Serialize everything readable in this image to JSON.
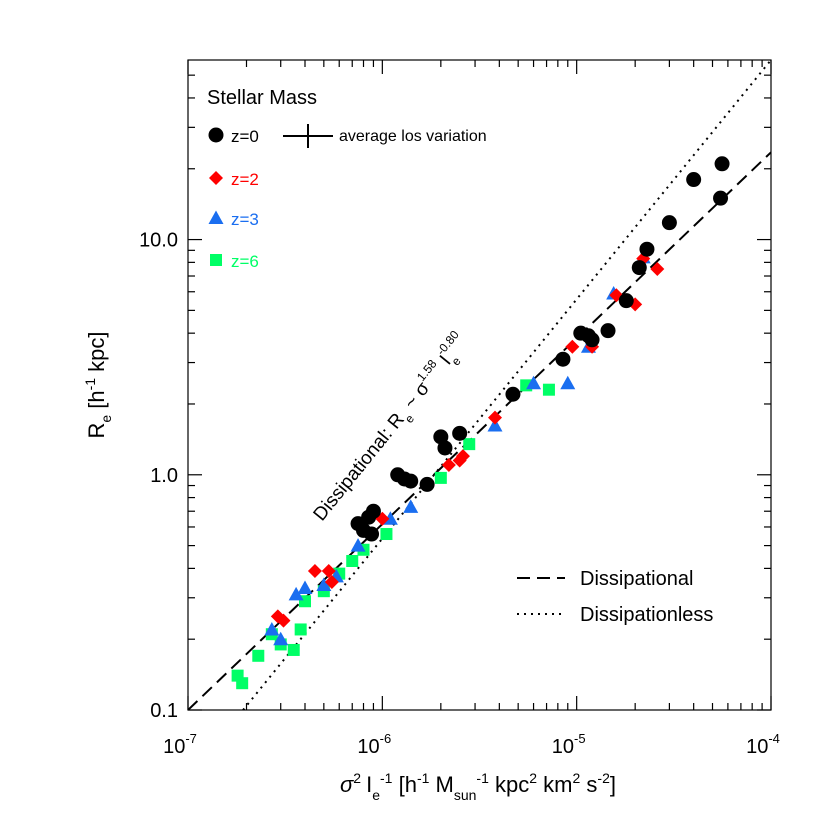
{
  "chart_data": {
    "type": "scatter",
    "xscale": "log",
    "yscale": "log",
    "xlim": [
      1e-07,
      0.0001
    ],
    "ylim": [
      0.1,
      58
    ],
    "xticks": [
      {
        "value": 1e-07,
        "base": "10",
        "exp": "-7"
      },
      {
        "value": 1e-06,
        "base": "10",
        "exp": "-6"
      },
      {
        "value": 1e-05,
        "base": "10",
        "exp": "-5"
      },
      {
        "value": 0.0001,
        "base": "10",
        "exp": "-4"
      }
    ],
    "yticks": [
      {
        "value": 0.1,
        "label": "0.1"
      },
      {
        "value": 1,
        "label": "1.0"
      },
      {
        "value": 10,
        "label": "10.0"
      }
    ],
    "xlabel": {
      "sigma": "σ",
      "sup2": "2",
      "I": "I",
      "sub_e": "e",
      "supm1": "-1",
      "rest1": " [h",
      "supm1b": "-1",
      "M": " M",
      "sub_sun": "sun",
      "supm1c": "-1",
      "kpc": " kpc",
      "sup2b": "2",
      "km": " km",
      "sup2c": "2",
      "s": " s",
      "supm2": "-2",
      "close": "]"
    },
    "ylabel": {
      "R": "R",
      "sub_e": "e",
      "rest": " [h",
      "supm1": "-1",
      "close": " kpc]"
    },
    "legend_title": "Stellar Mass",
    "legend_note": "average los variation",
    "series": [
      {
        "name": "z=0",
        "marker": "circle",
        "color": "#000000",
        "points": [
          [
            7.5e-07,
            0.62
          ],
          [
            8e-07,
            0.58
          ],
          [
            8.5e-07,
            0.66
          ],
          [
            8.8e-07,
            0.56
          ],
          [
            9e-07,
            0.7
          ],
          [
            1.2e-06,
            1.0
          ],
          [
            1.3e-06,
            0.96
          ],
          [
            1.4e-06,
            0.94
          ],
          [
            1.7e-06,
            0.91
          ],
          [
            2e-06,
            1.45
          ],
          [
            2.1e-06,
            1.3
          ],
          [
            2.5e-06,
            1.5
          ],
          [
            4.7e-06,
            2.2
          ],
          [
            8.5e-06,
            3.1
          ],
          [
            1.05e-05,
            4.0
          ],
          [
            1.15e-05,
            3.9
          ],
          [
            1.2e-05,
            3.75
          ],
          [
            1.45e-05,
            4.1
          ],
          [
            1.8e-05,
            5.5
          ],
          [
            2.1e-05,
            7.6
          ],
          [
            2.3e-05,
            9.1
          ],
          [
            3e-05,
            11.8
          ],
          [
            4e-05,
            18.0
          ],
          [
            5.5e-05,
            15.0
          ],
          [
            5.6e-05,
            21.0
          ]
        ]
      },
      {
        "name": "z=2",
        "marker": "diamond",
        "color": "#ff0000",
        "points": [
          [
            2.9e-07,
            0.25
          ],
          [
            3.1e-07,
            0.24
          ],
          [
            4.5e-07,
            0.39
          ],
          [
            5.3e-07,
            0.39
          ],
          [
            5.5e-07,
            0.35
          ],
          [
            1e-06,
            0.65
          ],
          [
            2.2e-06,
            1.1
          ],
          [
            2.5e-06,
            1.15
          ],
          [
            2.6e-06,
            1.2
          ],
          [
            3.8e-06,
            1.75
          ],
          [
            9.5e-06,
            3.5
          ],
          [
            1.2e-05,
            3.5
          ],
          [
            1.6e-05,
            5.8
          ],
          [
            2e-05,
            5.3
          ],
          [
            2.2e-05,
            8.3
          ],
          [
            2.6e-05,
            7.5
          ]
        ]
      },
      {
        "name": "z=3",
        "marker": "triangle",
        "color": "#1a6ef0",
        "points": [
          [
            2.7e-07,
            0.22
          ],
          [
            3e-07,
            0.2
          ],
          [
            3.6e-07,
            0.31
          ],
          [
            4e-07,
            0.33
          ],
          [
            5e-07,
            0.34
          ],
          [
            5.8e-07,
            0.37
          ],
          [
            7.5e-07,
            0.5
          ],
          [
            1.1e-06,
            0.65
          ],
          [
            1.4e-06,
            0.73
          ],
          [
            3.8e-06,
            1.62
          ],
          [
            6e-06,
            2.45
          ],
          [
            9e-06,
            2.45
          ],
          [
            1.15e-05,
            3.5
          ],
          [
            1.55e-05,
            5.9
          ],
          [
            2.2e-05,
            8.4
          ]
        ]
      },
      {
        "name": "z=6",
        "marker": "square",
        "color": "#00ff66",
        "points": [
          [
            1.8e-07,
            0.14
          ],
          [
            1.9e-07,
            0.13
          ],
          [
            2.3e-07,
            0.17
          ],
          [
            2.7e-07,
            0.21
          ],
          [
            3e-07,
            0.19
          ],
          [
            3.5e-07,
            0.18
          ],
          [
            3.8e-07,
            0.22
          ],
          [
            4e-07,
            0.29
          ],
          [
            5e-07,
            0.32
          ],
          [
            6e-07,
            0.38
          ],
          [
            7e-07,
            0.43
          ],
          [
            8e-07,
            0.48
          ],
          [
            1.05e-06,
            0.56
          ],
          [
            2e-06,
            0.97
          ],
          [
            2.8e-06,
            1.35
          ],
          [
            5.5e-06,
            2.4
          ],
          [
            7.2e-06,
            2.3
          ]
        ]
      }
    ],
    "lines": [
      {
        "name": "Dissipational",
        "style": "dashed",
        "points": [
          [
            1e-07,
            0.1
          ],
          [
            0.0001,
            23.5
          ]
        ]
      },
      {
        "name": "Dissipationless",
        "style": "dotted",
        "points": [
          [
            1.92e-07,
            0.1
          ],
          [
            0.0001,
            58
          ]
        ]
      }
    ],
    "annotation": {
      "prefix": "Dissipational: R",
      "sub_e": "e",
      "tilde": " ~ σ",
      "sup1": "1.58",
      "I": " I",
      "sub_e2": "e",
      "sup2": "-0.80"
    },
    "errorbar": {
      "x": 6.3e-07,
      "y": 32
    }
  }
}
